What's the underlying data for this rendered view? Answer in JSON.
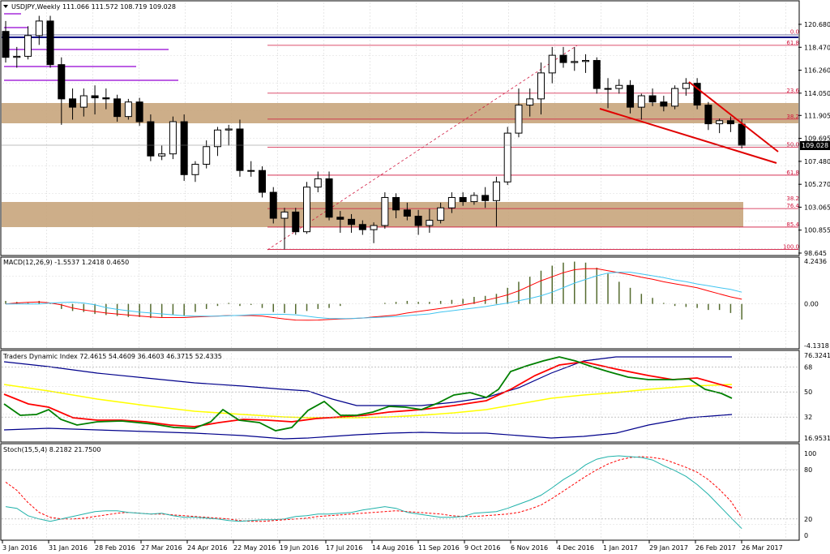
{
  "header": {
    "main": "USDJPY,Weekly  111.066 111.572 108.719 109.028",
    "macd": "MACD(12,26,9) -1.5537 1.2418 0.4650",
    "tdi": "Traders Dynamic Index 72.4615 54.4609 36.4603 46.3715 52.4335",
    "stoch": "Stoch(15,5,4) 8.2182 21.7500"
  },
  "price_labels": [
    "120.680",
    "118.470",
    "116.260",
    "114.050",
    "111.905",
    "109.695",
    "107.480",
    "105.270",
    "103.065",
    "100.855",
    "98.645"
  ],
  "current_price": "109.028",
  "fib_labels": [
    "61.8",
    "0.0",
    "23.6",
    "38.2",
    "50.0",
    "61.8",
    "76.4",
    "85.4",
    "100.0"
  ],
  "extra_fib_label": "38.2",
  "macd_labels": [
    "4.2436",
    "0.00",
    "-4.1318"
  ],
  "tdi_labels": [
    "76.3241",
    "68",
    "50",
    "32",
    "16.9531"
  ],
  "stoch_labels": [
    "100",
    "80",
    "20",
    "0"
  ],
  "x_labels": [
    "3 Jan 2016",
    "31 Jan 2016",
    "28 Feb 2016",
    "27 Mar 2016",
    "24 Apr 2016",
    "22 May 2016",
    "19 Jun 2016",
    "17 Jul 2016",
    "14 Aug 2016",
    "11 Sep 2016",
    "9 Oct 2016",
    "6 Nov 2016",
    "4 Dec 2016",
    "1 Jan 2017",
    "29 Jan 2017",
    "26 Feb 2017",
    "26 Mar 2017"
  ],
  "colors": {
    "up": "#ffffff",
    "down": "#000000",
    "fib": "#d0143c",
    "zone": "#c8a57c",
    "macd_bar": "#556b2f",
    "signal": "#ff0000",
    "tdi_green": "#008000",
    "tdi_red": "#ff0000",
    "tdi_yellow": "#ffff00",
    "tdi_blue": "#00008b",
    "stoch_main": "#20b2aa",
    "stoch_signal": "#ff0000"
  },
  "chart_data": [
    {
      "type": "candlestick",
      "symbol": "USDJPY",
      "timeframe": "Weekly",
      "ylim": [
        98.645,
        120.68
      ],
      "candles": [
        {
          "o": 120.0,
          "h": 121.0,
          "l": 117.0,
          "c": 117.5
        },
        {
          "o": 117.5,
          "h": 118.5,
          "l": 116.5,
          "c": 117.6
        },
        {
          "o": 117.6,
          "h": 120.5,
          "l": 117.3,
          "c": 119.6
        },
        {
          "o": 119.6,
          "h": 121.5,
          "l": 118.7,
          "c": 121.0
        },
        {
          "o": 121.0,
          "h": 121.5,
          "l": 116.5,
          "c": 116.8
        },
        {
          "o": 116.8,
          "h": 117.5,
          "l": 111.0,
          "c": 113.5
        },
        {
          "o": 113.5,
          "h": 114.5,
          "l": 111.5,
          "c": 112.7
        },
        {
          "o": 112.7,
          "h": 114.5,
          "l": 111.8,
          "c": 113.8
        },
        {
          "o": 113.8,
          "h": 114.8,
          "l": 112.0,
          "c": 113.6
        },
        {
          "o": 113.6,
          "h": 114.5,
          "l": 112.5,
          "c": 113.5
        },
        {
          "o": 113.5,
          "h": 113.9,
          "l": 111.3,
          "c": 111.8
        },
        {
          "o": 111.8,
          "h": 113.5,
          "l": 111.5,
          "c": 113.2
        },
        {
          "o": 113.2,
          "h": 113.6,
          "l": 110.9,
          "c": 111.3
        },
        {
          "o": 111.3,
          "h": 112.0,
          "l": 107.5,
          "c": 108.0
        },
        {
          "o": 108.0,
          "h": 109.0,
          "l": 107.6,
          "c": 108.2
        },
        {
          "o": 108.2,
          "h": 111.8,
          "l": 107.7,
          "c": 111.3
        },
        {
          "o": 111.3,
          "h": 112.0,
          "l": 105.6,
          "c": 106.2
        },
        {
          "o": 106.2,
          "h": 107.5,
          "l": 105.5,
          "c": 107.2
        },
        {
          "o": 107.2,
          "h": 109.5,
          "l": 106.8,
          "c": 108.9
        },
        {
          "o": 108.9,
          "h": 110.8,
          "l": 108.0,
          "c": 110.5
        },
        {
          "o": 110.5,
          "h": 111.0,
          "l": 109.0,
          "c": 110.6
        },
        {
          "o": 110.6,
          "h": 111.5,
          "l": 106.0,
          "c": 106.6
        },
        {
          "o": 106.6,
          "h": 107.5,
          "l": 106.0,
          "c": 106.6
        },
        {
          "o": 106.6,
          "h": 107.0,
          "l": 104.0,
          "c": 104.5
        },
        {
          "o": 104.5,
          "h": 105.0,
          "l": 101.5,
          "c": 102.0
        },
        {
          "o": 102.0,
          "h": 103.0,
          "l": 99.0,
          "c": 102.6
        },
        {
          "o": 102.6,
          "h": 103.0,
          "l": 100.4,
          "c": 100.7
        },
        {
          "o": 100.7,
          "h": 105.5,
          "l": 100.5,
          "c": 105.0
        },
        {
          "o": 105.0,
          "h": 106.5,
          "l": 104.5,
          "c": 105.8
        },
        {
          "o": 105.8,
          "h": 106.5,
          "l": 101.8,
          "c": 102.1
        },
        {
          "o": 102.1,
          "h": 102.7,
          "l": 100.6,
          "c": 101.9
        },
        {
          "o": 101.9,
          "h": 102.4,
          "l": 100.6,
          "c": 101.4
        },
        {
          "o": 101.4,
          "h": 101.8,
          "l": 100.4,
          "c": 100.9
        },
        {
          "o": 100.9,
          "h": 101.6,
          "l": 99.6,
          "c": 101.3
        },
        {
          "o": 101.3,
          "h": 104.5,
          "l": 101.0,
          "c": 104.0
        },
        {
          "o": 104.0,
          "h": 104.4,
          "l": 102.0,
          "c": 102.8
        },
        {
          "o": 102.8,
          "h": 103.5,
          "l": 101.8,
          "c": 102.2
        },
        {
          "o": 102.2,
          "h": 102.8,
          "l": 100.4,
          "c": 101.3
        },
        {
          "o": 101.3,
          "h": 102.9,
          "l": 100.6,
          "c": 101.8
        },
        {
          "o": 101.8,
          "h": 103.5,
          "l": 101.5,
          "c": 103.0
        },
        {
          "o": 103.0,
          "h": 104.5,
          "l": 102.5,
          "c": 104.0
        },
        {
          "o": 104.0,
          "h": 104.5,
          "l": 103.2,
          "c": 103.6
        },
        {
          "o": 103.6,
          "h": 104.5,
          "l": 103.3,
          "c": 104.2
        },
        {
          "o": 104.2,
          "h": 105.0,
          "l": 103.0,
          "c": 103.7
        },
        {
          "o": 103.7,
          "h": 106.0,
          "l": 101.2,
          "c": 105.5
        },
        {
          "o": 105.5,
          "h": 110.8,
          "l": 105.2,
          "c": 110.2
        },
        {
          "o": 110.2,
          "h": 114.5,
          "l": 109.8,
          "c": 112.9
        },
        {
          "o": 112.9,
          "h": 114.5,
          "l": 111.8,
          "c": 113.5
        },
        {
          "o": 113.5,
          "h": 117.0,
          "l": 112.0,
          "c": 116.0
        },
        {
          "o": 116.0,
          "h": 118.5,
          "l": 115.0,
          "c": 117.7
        },
        {
          "o": 117.7,
          "h": 118.5,
          "l": 116.5,
          "c": 117.0
        },
        {
          "o": 117.0,
          "h": 118.5,
          "l": 116.2,
          "c": 117.1
        },
        {
          "o": 117.1,
          "h": 117.8,
          "l": 116.0,
          "c": 117.2
        },
        {
          "o": 117.2,
          "h": 117.5,
          "l": 114.0,
          "c": 114.5
        },
        {
          "o": 114.5,
          "h": 115.5,
          "l": 112.6,
          "c": 114.5
        },
        {
          "o": 114.5,
          "h": 115.4,
          "l": 114.0,
          "c": 114.8
        },
        {
          "o": 114.8,
          "h": 115.3,
          "l": 112.1,
          "c": 112.7
        },
        {
          "o": 112.7,
          "h": 114.0,
          "l": 111.5,
          "c": 113.8
        },
        {
          "o": 113.8,
          "h": 114.5,
          "l": 112.8,
          "c": 113.2
        },
        {
          "o": 113.2,
          "h": 113.8,
          "l": 112.3,
          "c": 112.8
        },
        {
          "o": 112.8,
          "h": 114.8,
          "l": 112.5,
          "c": 114.5
        },
        {
          "o": 114.5,
          "h": 115.5,
          "l": 113.8,
          "c": 115.0
        },
        {
          "o": 115.0,
          "h": 115.5,
          "l": 112.5,
          "c": 112.9
        },
        {
          "o": 112.9,
          "h": 113.2,
          "l": 110.5,
          "c": 111.1
        },
        {
          "o": 111.1,
          "h": 111.6,
          "l": 110.2,
          "c": 111.4
        },
        {
          "o": 111.4,
          "h": 111.8,
          "l": 110.3,
          "c": 111.1
        },
        {
          "o": 111.066,
          "h": 111.572,
          "l": 108.719,
          "c": 109.028
        }
      ]
    },
    {
      "type": "bar",
      "name": "MACD",
      "ylim": [
        -4.1318,
        4.2436
      ],
      "values": [
        0.3,
        0.2,
        0.1,
        0.3,
        0.1,
        -0.5,
        -0.7,
        -0.8,
        -1.0,
        -1.1,
        -1.2,
        -1.3,
        -1.3,
        -1.4,
        -1.3,
        -1.1,
        -1.2,
        -0.8,
        -0.5,
        -0.2,
        0.1,
        -0.2,
        -0.1,
        -0.4,
        -0.8,
        -0.9,
        -1.0,
        -0.7,
        -0.5,
        -0.4,
        -0.2,
        0.0,
        0.0,
        0.0,
        0.1,
        0.2,
        0.3,
        0.2,
        0.2,
        0.3,
        0.4,
        0.5,
        0.7,
        0.8,
        1.0,
        1.6,
        2.2,
        2.7,
        3.3,
        3.8,
        4.1,
        4.2,
        4.1,
        3.6,
        3.0,
        2.2,
        1.6,
        1.0,
        0.6,
        0.1,
        -0.2,
        -0.3,
        -0.4,
        -0.6,
        -0.6,
        -0.9,
        -1.55
      ],
      "signal": [
        0.0,
        0.1,
        0.15,
        0.2,
        0.1,
        -0.1,
        -0.4,
        -0.6,
        -0.75,
        -0.9,
        -1.0,
        -1.1,
        -1.2,
        -1.3,
        -1.35,
        -1.35,
        -1.35,
        -1.3,
        -1.25,
        -1.2,
        -1.15,
        -1.15,
        -1.15,
        -1.2,
        -1.35,
        -1.5,
        -1.6,
        -1.62,
        -1.6,
        -1.55,
        -1.5,
        -1.45,
        -1.4,
        -1.3,
        -1.2,
        -1.1,
        -0.9,
        -0.75,
        -0.6,
        -0.45,
        -0.3,
        -0.1,
        0.1,
        0.35,
        0.6,
        0.9,
        1.3,
        1.8,
        2.3,
        2.7,
        3.1,
        3.4,
        3.5,
        3.5,
        3.3,
        3.1,
        2.9,
        2.65,
        2.45,
        2.2,
        2.0,
        1.8,
        1.6,
        1.3,
        1.0,
        0.7,
        0.465
      ]
    },
    {
      "type": "line",
      "name": "Traders Dynamic Index",
      "ylim": [
        16.9531,
        76.3241
      ]
    },
    {
      "type": "line",
      "name": "Stoch(15,5,4)",
      "ylim": [
        0,
        100
      ],
      "main": [
        35,
        33,
        24,
        20,
        17,
        20,
        23,
        26,
        29,
        30,
        30,
        28,
        27,
        26,
        27,
        24,
        22,
        22,
        21,
        20,
        18,
        17,
        18,
        19,
        19,
        20,
        23,
        24,
        26,
        26,
        27,
        28,
        31,
        33,
        35,
        33,
        28,
        26,
        24,
        22,
        22,
        23,
        27,
        28,
        29,
        33,
        38,
        43,
        49,
        58,
        68,
        76,
        86,
        93,
        96,
        97,
        96,
        95,
        92,
        85,
        79,
        72,
        62,
        50,
        36,
        22,
        8.2
      ],
      "signal": [
        65,
        55,
        40,
        28,
        22,
        20,
        20,
        21,
        23,
        25,
        27,
        28,
        27,
        26,
        26,
        25,
        24,
        23,
        22,
        21,
        20,
        18,
        17,
        17,
        18,
        19,
        20,
        21,
        23,
        24,
        25,
        26,
        27,
        28,
        29,
        30,
        29,
        28,
        27,
        26,
        24,
        23,
        23,
        24,
        25,
        26,
        28,
        32,
        37,
        45,
        54,
        63,
        72,
        80,
        87,
        92,
        95,
        96,
        95,
        93,
        88,
        83,
        77,
        68,
        56,
        42,
        21.75
      ]
    }
  ]
}
